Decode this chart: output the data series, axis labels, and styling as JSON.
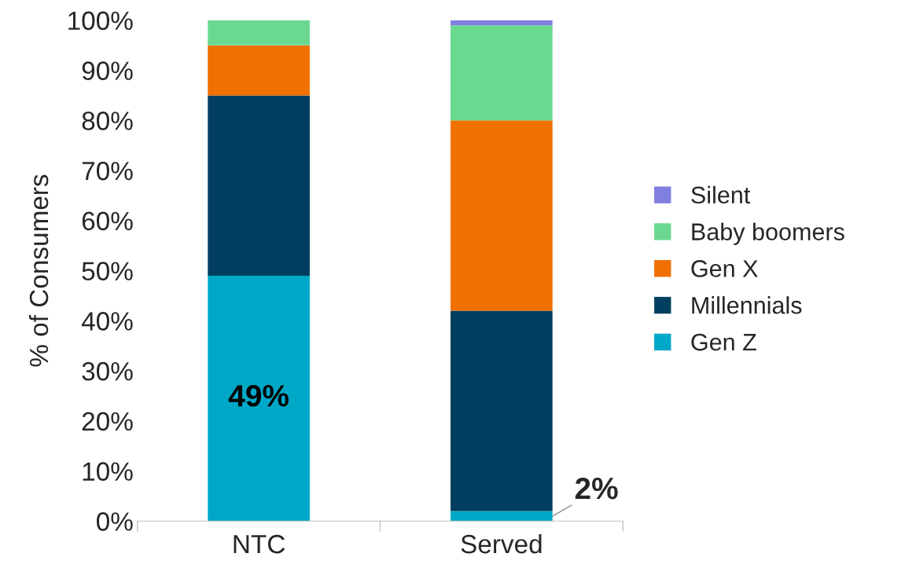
{
  "chart_data": {
    "type": "bar",
    "stacked": true,
    "ylabel": "% of Consumers",
    "categories": [
      "NTC",
      "Served"
    ],
    "series": [
      {
        "name": "Gen Z",
        "color": "#00a8c8",
        "values": [
          49,
          2
        ],
        "value_labels": [
          "49%",
          "2%"
        ]
      },
      {
        "name": "Millennials",
        "color": "#003f5f",
        "values": [
          36,
          40
        ]
      },
      {
        "name": "Gen X",
        "color": "#f07000",
        "values": [
          10,
          38
        ]
      },
      {
        "name": "Baby boomers",
        "color": "#6ad98f",
        "values": [
          5,
          19
        ]
      },
      {
        "name": "Silent",
        "color": "#8080e0",
        "values": [
          0,
          1
        ]
      }
    ],
    "ylim": [
      0,
      100
    ],
    "yticks": [
      {
        "value": 0,
        "label": "0%"
      },
      {
        "value": 10,
        "label": "10%"
      },
      {
        "value": 20,
        "label": "20%"
      },
      {
        "value": 30,
        "label": "30%"
      },
      {
        "value": 40,
        "label": "40%"
      },
      {
        "value": 50,
        "label": "50%"
      },
      {
        "value": 60,
        "label": "60%"
      },
      {
        "value": 70,
        "label": "70%"
      },
      {
        "value": 80,
        "label": "80%"
      },
      {
        "value": 90,
        "label": "90%"
      },
      {
        "value": 100,
        "label": "100%"
      }
    ],
    "grid": false,
    "legend": "right"
  }
}
